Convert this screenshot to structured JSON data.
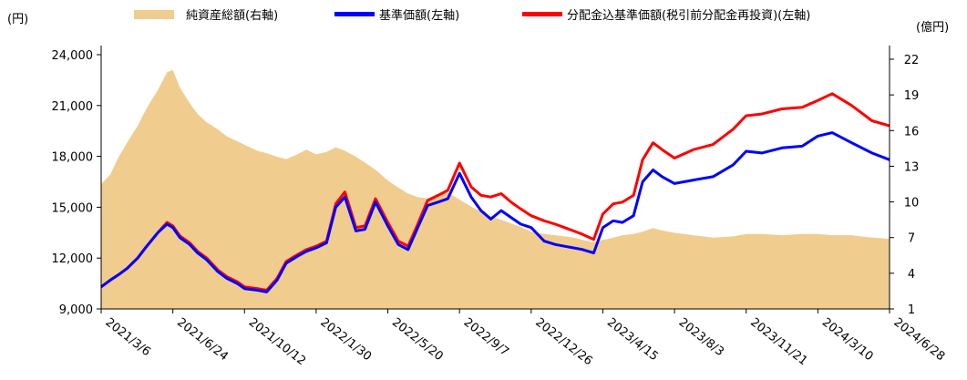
{
  "chart_data": {
    "type": "line",
    "left_unit": "(円)",
    "right_unit": "(億円)",
    "left_ticks": [
      "9,000",
      "12,000",
      "15,000",
      "18,000",
      "21,000",
      "24,000"
    ],
    "right_ticks": [
      "1",
      "4",
      "7",
      "10",
      "13",
      "16",
      "19",
      "22"
    ],
    "x_ticks": [
      "2021/3/6",
      "2021/6/24",
      "2021/10/12",
      "2022/1/30",
      "2022/5/20",
      "2022/9/7",
      "2022/12/26",
      "2023/4/15",
      "2023/8/3",
      "2023/11/21",
      "2024/3/10",
      "2024/6/28"
    ],
    "left_ylim": [
      9000,
      24000
    ],
    "right_ylim": [
      1,
      22
    ],
    "xlim": [
      "2021/3/6",
      "2024/6/28"
    ],
    "grid": false,
    "legend_position": "top",
    "colors": {
      "net_assets": "#f0cd8e",
      "nav": "#0000ff",
      "nav_reinvested": "#ff0000"
    },
    "series": [
      {
        "name": "純資産総額(右軸)",
        "axis": "right",
        "chart": "area",
        "x": [
          "2021/3/6",
          "2021/3/20",
          "2021/4/1",
          "2021/4/15",
          "2021/5/1",
          "2021/5/15",
          "2021/6/1",
          "2021/6/15",
          "2021/6/24",
          "2021/7/5",
          "2021/7/20",
          "2021/8/1",
          "2021/8/15",
          "2021/9/1",
          "2021/9/15",
          "2021/10/1",
          "2021/10/12",
          "2021/11/1",
          "2021/11/15",
          "2021/12/1",
          "2021/12/15",
          "2022/1/1",
          "2022/1/15",
          "2022/1/30",
          "2022/2/15",
          "2022/3/1",
          "2022/3/15",
          "2022/4/1",
          "2022/4/15",
          "2022/5/1",
          "2022/5/20",
          "2022/6/5",
          "2022/6/20",
          "2022/7/5",
          "2022/7/20",
          "2022/8/5",
          "2022/8/20",
          "2022/9/7",
          "2022/9/25",
          "2022/10/10",
          "2022/10/25",
          "2022/11/10",
          "2022/11/25",
          "2022/12/10",
          "2022/12/26",
          "2023/1/15",
          "2023/2/1",
          "2023/2/15",
          "2023/3/1",
          "2023/3/15",
          "2023/4/1",
          "2023/4/15",
          "2023/5/1",
          "2023/5/15",
          "2023/6/1",
          "2023/6/15",
          "2023/7/1",
          "2023/7/15",
          "2023/8/3",
          "2023/9/1",
          "2023/10/1",
          "2023/11/1",
          "2023/11/21",
          "2023/12/15",
          "2024/1/15",
          "2024/2/15",
          "2024/3/10",
          "2024/4/1",
          "2024/5/1",
          "2024/6/1",
          "2024/6/28"
        ],
        "values": [
          11.5,
          12.3,
          13.7,
          15.0,
          16.4,
          17.9,
          19.4,
          20.9,
          21.1,
          19.6,
          18.3,
          17.4,
          16.7,
          16.1,
          15.5,
          15.1,
          14.8,
          14.3,
          14.1,
          13.8,
          13.6,
          14.0,
          14.4,
          14.0,
          14.2,
          14.6,
          14.3,
          13.8,
          13.3,
          12.7,
          11.8,
          11.2,
          10.7,
          10.4,
          10.3,
          10.6,
          10.8,
          10.2,
          9.6,
          9.2,
          8.8,
          8.5,
          8.2,
          7.9,
          7.5,
          7.3,
          7.2,
          7.1,
          7.0,
          6.8,
          6.6,
          6.8,
          7.0,
          7.2,
          7.3,
          7.5,
          7.8,
          7.6,
          7.4,
          7.2,
          7.0,
          7.1,
          7.3,
          7.3,
          7.2,
          7.3,
          7.3,
          7.2,
          7.2,
          7.0,
          6.9
        ]
      },
      {
        "name": "基準価額(左軸)",
        "axis": "left",
        "chart": "line",
        "x": [
          "2021/3/6",
          "2021/3/20",
          "2021/4/1",
          "2021/4/15",
          "2021/5/1",
          "2021/5/15",
          "2021/6/1",
          "2021/6/15",
          "2021/6/24",
          "2021/7/5",
          "2021/7/20",
          "2021/8/1",
          "2021/8/15",
          "2021/9/1",
          "2021/9/15",
          "2021/10/1",
          "2021/10/12",
          "2021/11/1",
          "2021/11/15",
          "2021/12/1",
          "2021/12/15",
          "2022/1/1",
          "2022/1/15",
          "2022/1/30",
          "2022/2/15",
          "2022/3/1",
          "2022/3/15",
          "2022/4/1",
          "2022/4/15",
          "2022/5/1",
          "2022/5/20",
          "2022/6/5",
          "2022/6/20",
          "2022/7/5",
          "2022/7/20",
          "2022/8/5",
          "2022/8/20",
          "2022/9/7",
          "2022/9/25",
          "2022/10/10",
          "2022/10/25",
          "2022/11/10",
          "2022/11/25",
          "2022/12/10",
          "2022/12/26",
          "2023/1/15",
          "2023/2/1",
          "2023/2/15",
          "2023/3/1",
          "2023/3/15",
          "2023/4/1",
          "2023/4/15",
          "2023/5/1",
          "2023/5/15",
          "2023/6/1",
          "2023/6/15",
          "2023/7/1",
          "2023/7/15",
          "2023/8/3",
          "2023/9/1",
          "2023/10/1",
          "2023/11/1",
          "2023/11/21",
          "2023/12/15",
          "2024/1/15",
          "2024/2/15",
          "2024/3/10",
          "2024/4/1",
          "2024/5/1",
          "2024/6/1",
          "2024/6/28"
        ],
        "values": [
          10300,
          10700,
          11000,
          11400,
          12000,
          12700,
          13500,
          14000,
          13800,
          13200,
          12800,
          12300,
          11900,
          11200,
          10800,
          10500,
          10200,
          10100,
          10000,
          10700,
          11700,
          12100,
          12400,
          12600,
          12900,
          15000,
          15600,
          13600,
          13700,
          15300,
          13900,
          12800,
          12500,
          13800,
          15100,
          15300,
          15500,
          17000,
          15600,
          14800,
          14300,
          14800,
          14400,
          14000,
          13800,
          13000,
          12800,
          12700,
          12600,
          12500,
          12300,
          13800,
          14200,
          14100,
          14500,
          16500,
          17200,
          16800,
          16400,
          16600,
          16800,
          17500,
          18300,
          18200,
          18500,
          18600,
          19200,
          19400,
          18800,
          18200,
          17800
        ]
      },
      {
        "name": "分配金込基準価額(税引前分配金再投資)(左軸)",
        "axis": "left",
        "chart": "line",
        "x": [
          "2021/3/6",
          "2021/3/20",
          "2021/4/1",
          "2021/4/15",
          "2021/5/1",
          "2021/5/15",
          "2021/6/1",
          "2021/6/15",
          "2021/6/24",
          "2021/7/5",
          "2021/7/20",
          "2021/8/1",
          "2021/8/15",
          "2021/9/1",
          "2021/9/15",
          "2021/10/1",
          "2021/10/12",
          "2021/11/1",
          "2021/11/15",
          "2021/12/1",
          "2021/12/15",
          "2022/1/1",
          "2022/1/15",
          "2022/1/30",
          "2022/2/15",
          "2022/3/1",
          "2022/3/15",
          "2022/4/1",
          "2022/4/15",
          "2022/5/1",
          "2022/5/20",
          "2022/6/5",
          "2022/6/20",
          "2022/7/5",
          "2022/7/20",
          "2022/8/5",
          "2022/8/20",
          "2022/9/7",
          "2022/9/25",
          "2022/10/10",
          "2022/10/25",
          "2022/11/10",
          "2022/11/25",
          "2022/12/10",
          "2022/12/26",
          "2023/1/15",
          "2023/2/1",
          "2023/2/15",
          "2023/3/1",
          "2023/3/15",
          "2023/4/1",
          "2023/4/15",
          "2023/5/1",
          "2023/5/15",
          "2023/6/1",
          "2023/6/15",
          "2023/7/1",
          "2023/7/15",
          "2023/8/3",
          "2023/9/1",
          "2023/10/1",
          "2023/11/1",
          "2023/11/21",
          "2023/12/15",
          "2024/1/15",
          "2024/2/15",
          "2024/3/10",
          "2024/4/1",
          "2024/5/1",
          "2024/6/1",
          "2024/6/28"
        ],
        "values": [
          10300,
          10700,
          11000,
          11400,
          12000,
          12700,
          13500,
          14100,
          13900,
          13300,
          12900,
          12400,
          12000,
          11300,
          10900,
          10600,
          10300,
          10200,
          10100,
          10800,
          11800,
          12200,
          12500,
          12700,
          13000,
          15200,
          15900,
          13800,
          13900,
          15500,
          14100,
          13000,
          12700,
          14000,
          15400,
          15700,
          16000,
          17600,
          16200,
          15700,
          15600,
          15800,
          15300,
          14900,
          14500,
          14200,
          14000,
          13800,
          13600,
          13400,
          13100,
          14600,
          15200,
          15300,
          15700,
          17800,
          18800,
          18400,
          17900,
          18400,
          18700,
          19600,
          20400,
          20500,
          20800,
          20900,
          21300,
          21700,
          21000,
          20100,
          19800
        ]
      }
    ]
  }
}
